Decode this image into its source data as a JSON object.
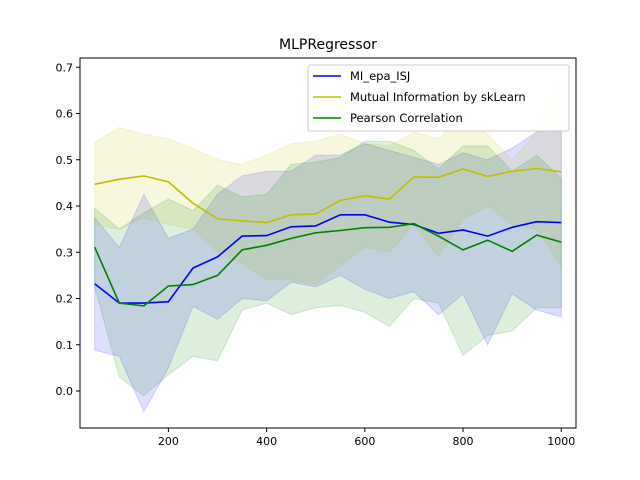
{
  "chart_data": {
    "type": "line",
    "title": "MLPRegressor",
    "xlabel": "",
    "ylabel": "",
    "xlim": [
      20,
      1030
    ],
    "ylim": [
      -0.08,
      0.72
    ],
    "xticks": [
      200,
      400,
      600,
      800,
      1000
    ],
    "yticks": [
      0.0,
      0.1,
      0.2,
      0.3,
      0.4,
      0.5,
      0.6,
      0.7
    ],
    "ytick_labels": [
      "0.0",
      "0.1",
      "0.2",
      "0.3",
      "0.4",
      "0.5",
      "0.6",
      "0.7"
    ],
    "grid": false,
    "legend_position": "top-right",
    "x": [
      50,
      100,
      150,
      200,
      250,
      300,
      350,
      400,
      450,
      500,
      550,
      600,
      650,
      700,
      750,
      800,
      850,
      900,
      950,
      1000
    ],
    "series": [
      {
        "name": "MI_epa_ISJ",
        "color": "#0000ff",
        "values": [
          0.232,
          0.19,
          0.19,
          0.193,
          0.266,
          0.29,
          0.335,
          0.336,
          0.355,
          0.357,
          0.381,
          0.381,
          0.365,
          0.36,
          0.341,
          0.348,
          0.335,
          0.354,
          0.366,
          0.364
        ],
        "lower": [
          0.088,
          0.075,
          -0.045,
          0.05,
          0.183,
          0.155,
          0.2,
          0.195,
          0.235,
          0.225,
          0.25,
          0.22,
          0.2,
          0.215,
          0.165,
          0.21,
          0.1,
          0.21,
          0.175,
          0.16
        ],
        "upper": [
          0.375,
          0.31,
          0.425,
          0.33,
          0.35,
          0.425,
          0.465,
          0.475,
          0.475,
          0.51,
          0.51,
          0.535,
          0.52,
          0.505,
          0.49,
          0.515,
          0.5,
          0.525,
          0.56,
          0.565
        ]
      },
      {
        "name": "Mutual Information by skLearn",
        "color": "#bfbf00",
        "values": [
          0.447,
          0.458,
          0.465,
          0.452,
          0.406,
          0.372,
          0.368,
          0.364,
          0.381,
          0.383,
          0.412,
          0.422,
          0.415,
          0.463,
          0.462,
          0.48,
          0.464,
          0.475,
          0.481,
          0.474
        ],
        "lower": [
          0.36,
          0.35,
          0.375,
          0.36,
          0.35,
          0.3,
          0.275,
          0.24,
          0.24,
          0.23,
          0.27,
          0.31,
          0.3,
          0.36,
          0.29,
          0.37,
          0.4,
          0.36,
          0.35,
          0.27
        ],
        "upper": [
          0.537,
          0.57,
          0.555,
          0.545,
          0.525,
          0.5,
          0.49,
          0.51,
          0.535,
          0.54,
          0.555,
          0.535,
          0.53,
          0.56,
          0.545,
          0.595,
          0.555,
          0.5,
          0.56,
          0.67
        ]
      },
      {
        "name": "Pearson Correlation",
        "color": "#008000",
        "values": [
          0.311,
          0.19,
          0.184,
          0.227,
          0.23,
          0.25,
          0.305,
          0.315,
          0.33,
          0.342,
          0.347,
          0.353,
          0.354,
          0.362,
          0.335,
          0.305,
          0.326,
          0.302,
          0.337,
          0.322
        ],
        "lower": [
          0.225,
          0.03,
          -0.01,
          0.035,
          0.075,
          0.065,
          0.175,
          0.19,
          0.165,
          0.18,
          0.185,
          0.17,
          0.14,
          0.2,
          0.19,
          0.077,
          0.12,
          0.13,
          0.18,
          0.18
        ],
        "upper": [
          0.395,
          0.35,
          0.385,
          0.415,
          0.39,
          0.445,
          0.42,
          0.425,
          0.49,
          0.495,
          0.505,
          0.54,
          0.54,
          0.52,
          0.48,
          0.53,
          0.53,
          0.475,
          0.51,
          0.46
        ]
      }
    ]
  }
}
